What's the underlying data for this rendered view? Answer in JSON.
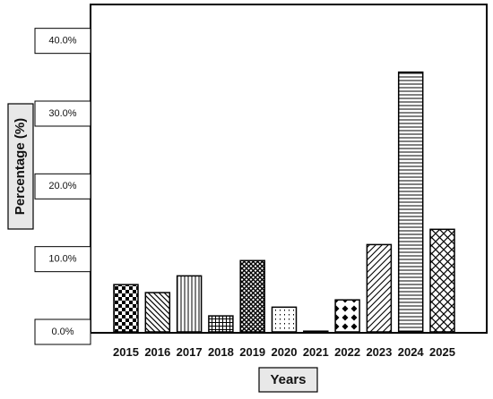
{
  "chart_data": {
    "type": "bar",
    "title": "",
    "xlabel": "Years",
    "ylabel": "Percentage (%)",
    "categories": [
      "2015",
      "2016",
      "2017",
      "2018",
      "2019",
      "2020",
      "2021",
      "2022",
      "2023",
      "2024",
      "2025"
    ],
    "values": [
      6.5,
      5.4,
      7.7,
      2.2,
      9.8,
      3.4,
      0.1,
      4.4,
      12.0,
      35.7,
      14.1
    ],
    "ylim": [
      0,
      45
    ],
    "yticks": [
      "0.0%",
      "10.0%",
      "20.0%",
      "30.0%",
      "40.0%"
    ],
    "ytick_values": [
      0,
      10,
      20,
      30,
      40
    ],
    "patterns": [
      "checker",
      "diag-down",
      "vertical",
      "grid",
      "diamond-dense",
      "dots",
      "none",
      "diamond",
      "diag-up",
      "horizontal",
      "crosshatch"
    ],
    "grid": false,
    "legend": "none"
  }
}
